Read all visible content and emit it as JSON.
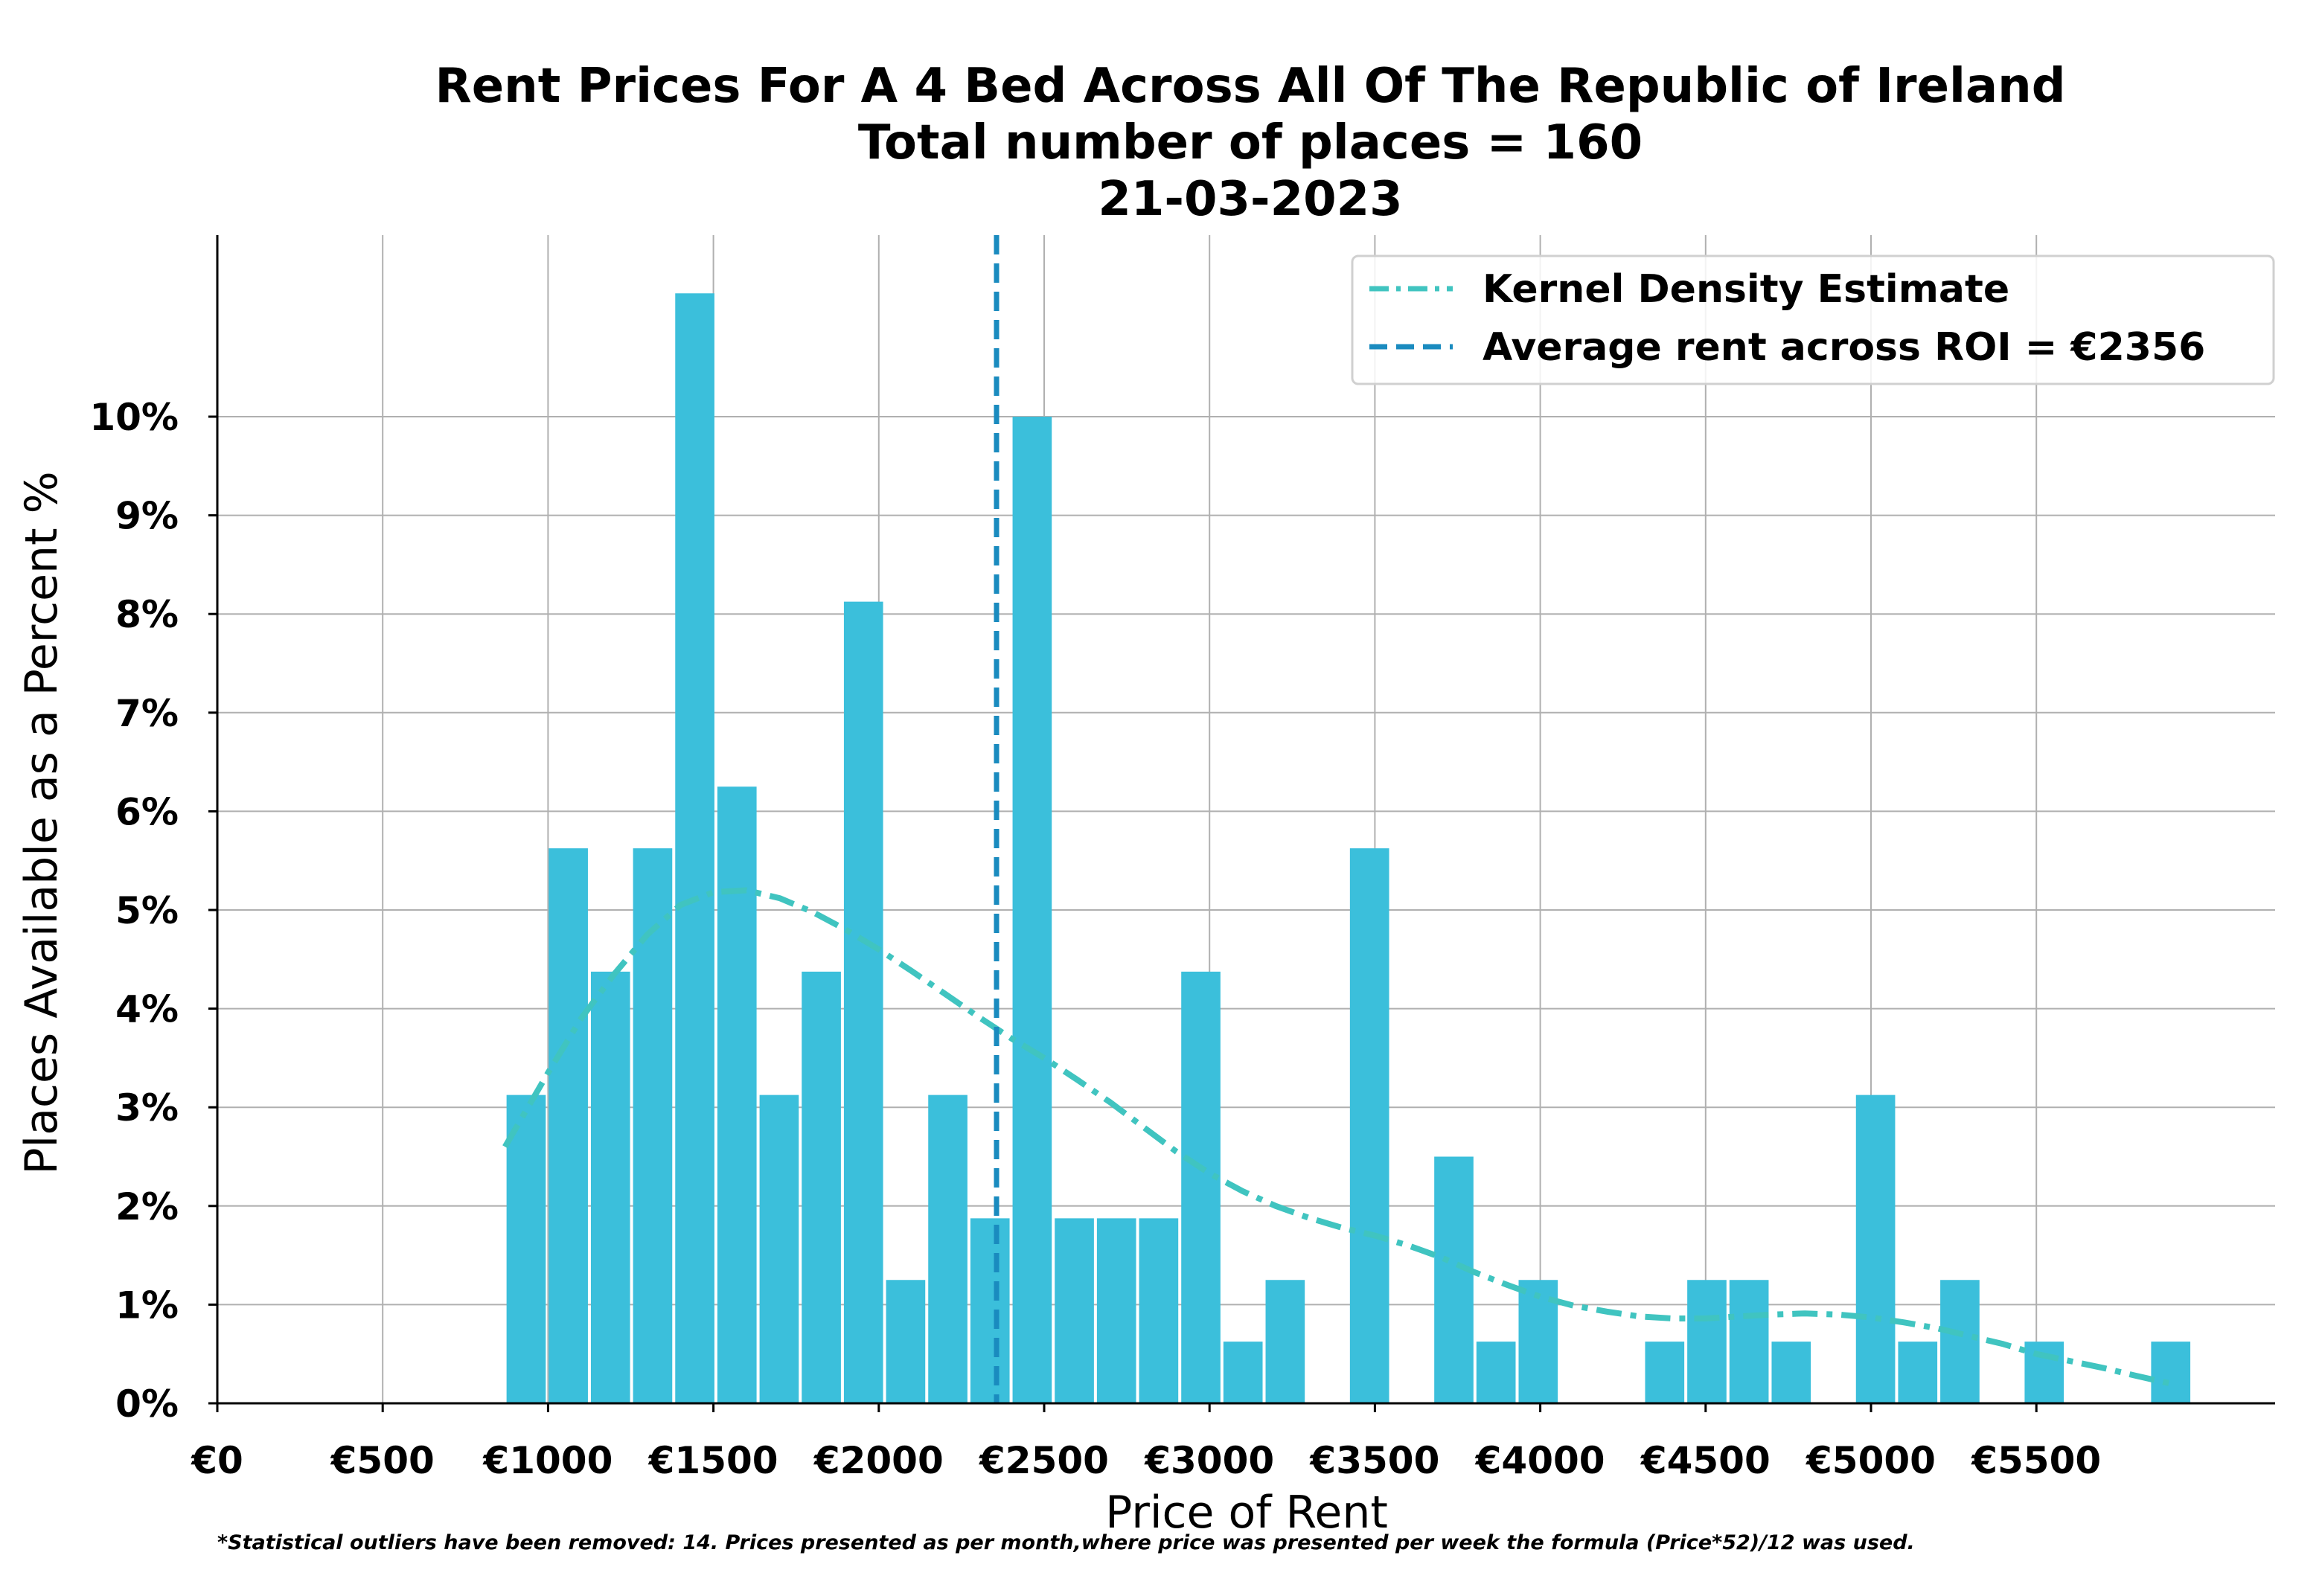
{
  "title": {
    "line1": "Rent Prices For A 4 Bed Across All Of The Republic of Ireland",
    "line2": "Total number of places = 160",
    "line3": "21-03-2023"
  },
  "footnote": "*Statistical outliers have been removed: 14. Prices presented as per month,where price was presented per week the formula (Price*52)/12 was used.",
  "colors": {
    "bar": "#3bbfdb",
    "kde": "#40c4c0",
    "mean_line": "#1a8bbf",
    "grid": "#b0b0b0"
  },
  "chart_data": {
    "type": "bar",
    "title": "Rent Prices For A 4 Bed Across All Of The Republic of Ireland",
    "xlabel": "Price of Rent",
    "ylabel": "Places Available as a Percent %",
    "xlim": [
      0,
      6200
    ],
    "ylim": [
      0,
      11.2
    ],
    "grid": true,
    "legend_position": "top-right",
    "x_ticks": [
      0,
      500,
      1000,
      1500,
      2000,
      2500,
      3000,
      3500,
      4000,
      4500,
      5000,
      5500
    ],
    "x_tick_labels": [
      "€0",
      "€500",
      "€1000",
      "€1500",
      "€2000",
      "€2500",
      "€3000",
      "€3500",
      "€4000",
      "€4500",
      "€5000",
      "€5500"
    ],
    "y_ticks": [
      0,
      1,
      2,
      3,
      4,
      5,
      6,
      7,
      8,
      9,
      10
    ],
    "y_tick_labels": [
      "0%",
      "1%",
      "2%",
      "3%",
      "4%",
      "5%",
      "6%",
      "7%",
      "8%",
      "9%",
      "10%"
    ],
    "bin_width": 127.5,
    "bin_starts": [
      870,
      997.5,
      1125,
      1252.5,
      1380,
      1507.5,
      1635,
      1762.5,
      1890,
      2017.5,
      2145,
      2272.5,
      2400,
      2527.5,
      2655,
      2782.5,
      2910,
      3037.5,
      3165,
      3292.5,
      3420,
      3547.5,
      3675,
      3802.5,
      3930,
      4057.5,
      4185,
      4312.5,
      4440,
      4567.5,
      4695,
      4822.5,
      4950,
      5077.5,
      5205,
      5332.5,
      5460,
      5587.5,
      5715,
      5842.5
    ],
    "values": [
      3.125,
      5.625,
      4.375,
      5.625,
      11.25,
      6.25,
      3.125,
      4.375,
      8.125,
      1.25,
      3.125,
      1.875,
      10.0,
      1.875,
      1.875,
      1.875,
      4.375,
      0.625,
      1.25,
      0,
      5.625,
      0,
      2.5,
      0.625,
      1.25,
      0,
      0,
      0.625,
      1.25,
      1.25,
      0.625,
      0,
      3.125,
      0.625,
      1.25,
      0,
      0.625,
      0,
      0,
      0.625
    ],
    "series": [
      {
        "name": "Kernel Density Estimate",
        "type": "line",
        "x": [
          870,
          1000,
          1100,
          1200,
          1300,
          1400,
          1500,
          1600,
          1700,
          1800,
          1900,
          2000,
          2100,
          2200,
          2300,
          2400,
          2500,
          2600,
          2700,
          2800,
          2900,
          3000,
          3100,
          3200,
          3300,
          3400,
          3500,
          3600,
          3700,
          3800,
          3900,
          4000,
          4100,
          4200,
          4300,
          4400,
          4500,
          4600,
          4700,
          4800,
          4900,
          5000,
          5100,
          5200,
          5300,
          5400,
          5500,
          5600,
          5700,
          5800,
          5906
        ],
        "values": [
          2.6,
          3.35,
          3.9,
          4.35,
          4.75,
          5.05,
          5.18,
          5.2,
          5.12,
          4.98,
          4.8,
          4.6,
          4.38,
          4.15,
          3.92,
          3.7,
          3.5,
          3.28,
          3.05,
          2.8,
          2.55,
          2.33,
          2.15,
          2.0,
          1.88,
          1.78,
          1.7,
          1.6,
          1.48,
          1.33,
          1.2,
          1.08,
          0.99,
          0.93,
          0.88,
          0.86,
          0.86,
          0.88,
          0.9,
          0.91,
          0.9,
          0.87,
          0.82,
          0.76,
          0.68,
          0.6,
          0.5,
          0.43,
          0.36,
          0.28,
          0.2
        ]
      },
      {
        "name": "Average rent across ROI = €2356",
        "type": "vline",
        "x": 2356
      }
    ]
  }
}
